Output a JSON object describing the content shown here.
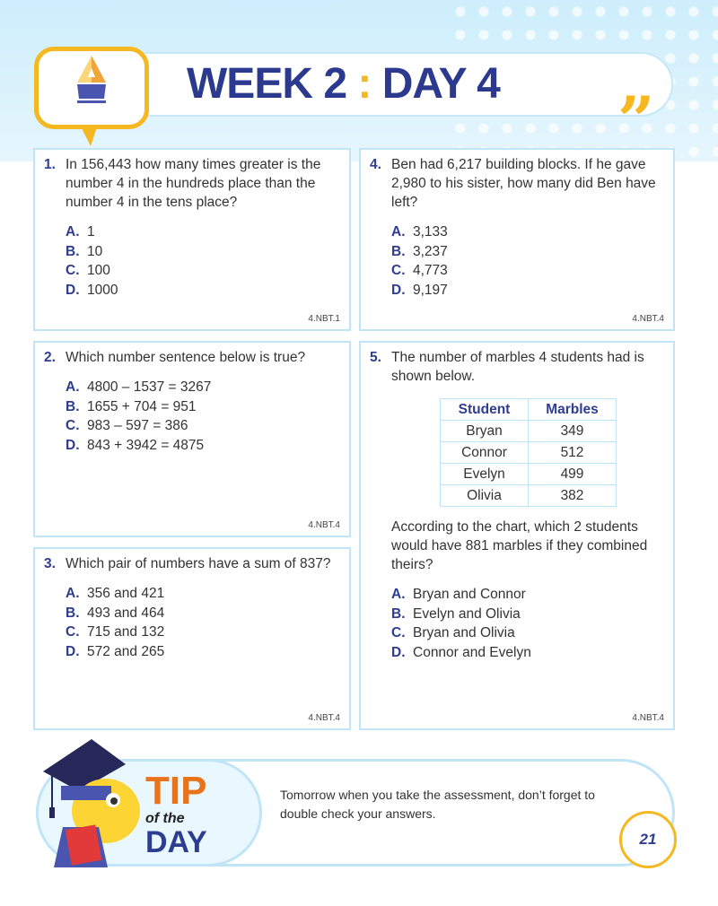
{
  "header": {
    "week": "WEEK 2",
    "separator": ":",
    "day": "DAY 4"
  },
  "questions": [
    {
      "number": "1.",
      "text": "In 156,443 how many times greater is the number 4 in the hundreds place than the number 4 in the tens place?",
      "options": [
        {
          "letter": "A.",
          "text": "1"
        },
        {
          "letter": "B.",
          "text": "10"
        },
        {
          "letter": "C.",
          "text": "100"
        },
        {
          "letter": "D.",
          "text": "1000"
        }
      ],
      "standard": "4.NBT.1"
    },
    {
      "number": "2.",
      "text": "Which number sentence below is true?",
      "options": [
        {
          "letter": "A.",
          "text": "4800 – 1537  =  3267"
        },
        {
          "letter": "B.",
          "text": "1655 + 704  =  951"
        },
        {
          "letter": "C.",
          "text": "983 – 597  =  386"
        },
        {
          "letter": "D.",
          "text": "843 + 3942  =  4875"
        }
      ],
      "standard": "4.NBT.4"
    },
    {
      "number": "3.",
      "text": "Which pair of numbers have a sum of 837?",
      "options": [
        {
          "letter": "A.",
          "text": "356 and 421"
        },
        {
          "letter": "B.",
          "text": "493 and 464"
        },
        {
          "letter": "C.",
          "text": "715 and 132"
        },
        {
          "letter": "D.",
          "text": "572 and 265"
        }
      ],
      "standard": "4.NBT.4"
    },
    {
      "number": "4.",
      "text": "Ben had 6,217 building blocks. If he gave 2,980 to his sister, how many did Ben have left?",
      "options": [
        {
          "letter": "A.",
          "text": "3,133"
        },
        {
          "letter": "B.",
          "text": "3,237"
        },
        {
          "letter": "C.",
          "text": "4,773"
        },
        {
          "letter": "D.",
          "text": "9,197"
        }
      ],
      "standard": "4.NBT.4"
    },
    {
      "number": "5.",
      "text": "The number of marbles 4 students had is shown below.",
      "table": {
        "headers": [
          "Student",
          "Marbles"
        ],
        "rows": [
          [
            "Bryan",
            "349"
          ],
          [
            "Connor",
            "512"
          ],
          [
            "Evelyn",
            "499"
          ],
          [
            "Olivia",
            "382"
          ]
        ]
      },
      "followup": "According to the chart, which 2 students would have 881 marbles if they combined theirs?",
      "options": [
        {
          "letter": "A.",
          "text": "Bryan and Connor"
        },
        {
          "letter": "B.",
          "text": "Evelyn and Olivia"
        },
        {
          "letter": "C.",
          "text": "Bryan and Olivia"
        },
        {
          "letter": "D.",
          "text": "Connor and Evelyn"
        }
      ],
      "standard": "4.NBT.4"
    }
  ],
  "tip": {
    "tip": "TIP",
    "of_the": "of the",
    "day": "DAY",
    "text": "Tomorrow when you take the assessment, don’t forget to double check your answers."
  },
  "page_number": "21",
  "colors": {
    "accent_blue": "#2e3d8f",
    "accent_yellow": "#f5b820",
    "tip_orange": "#e8731a",
    "border": "#bfe5f7"
  }
}
